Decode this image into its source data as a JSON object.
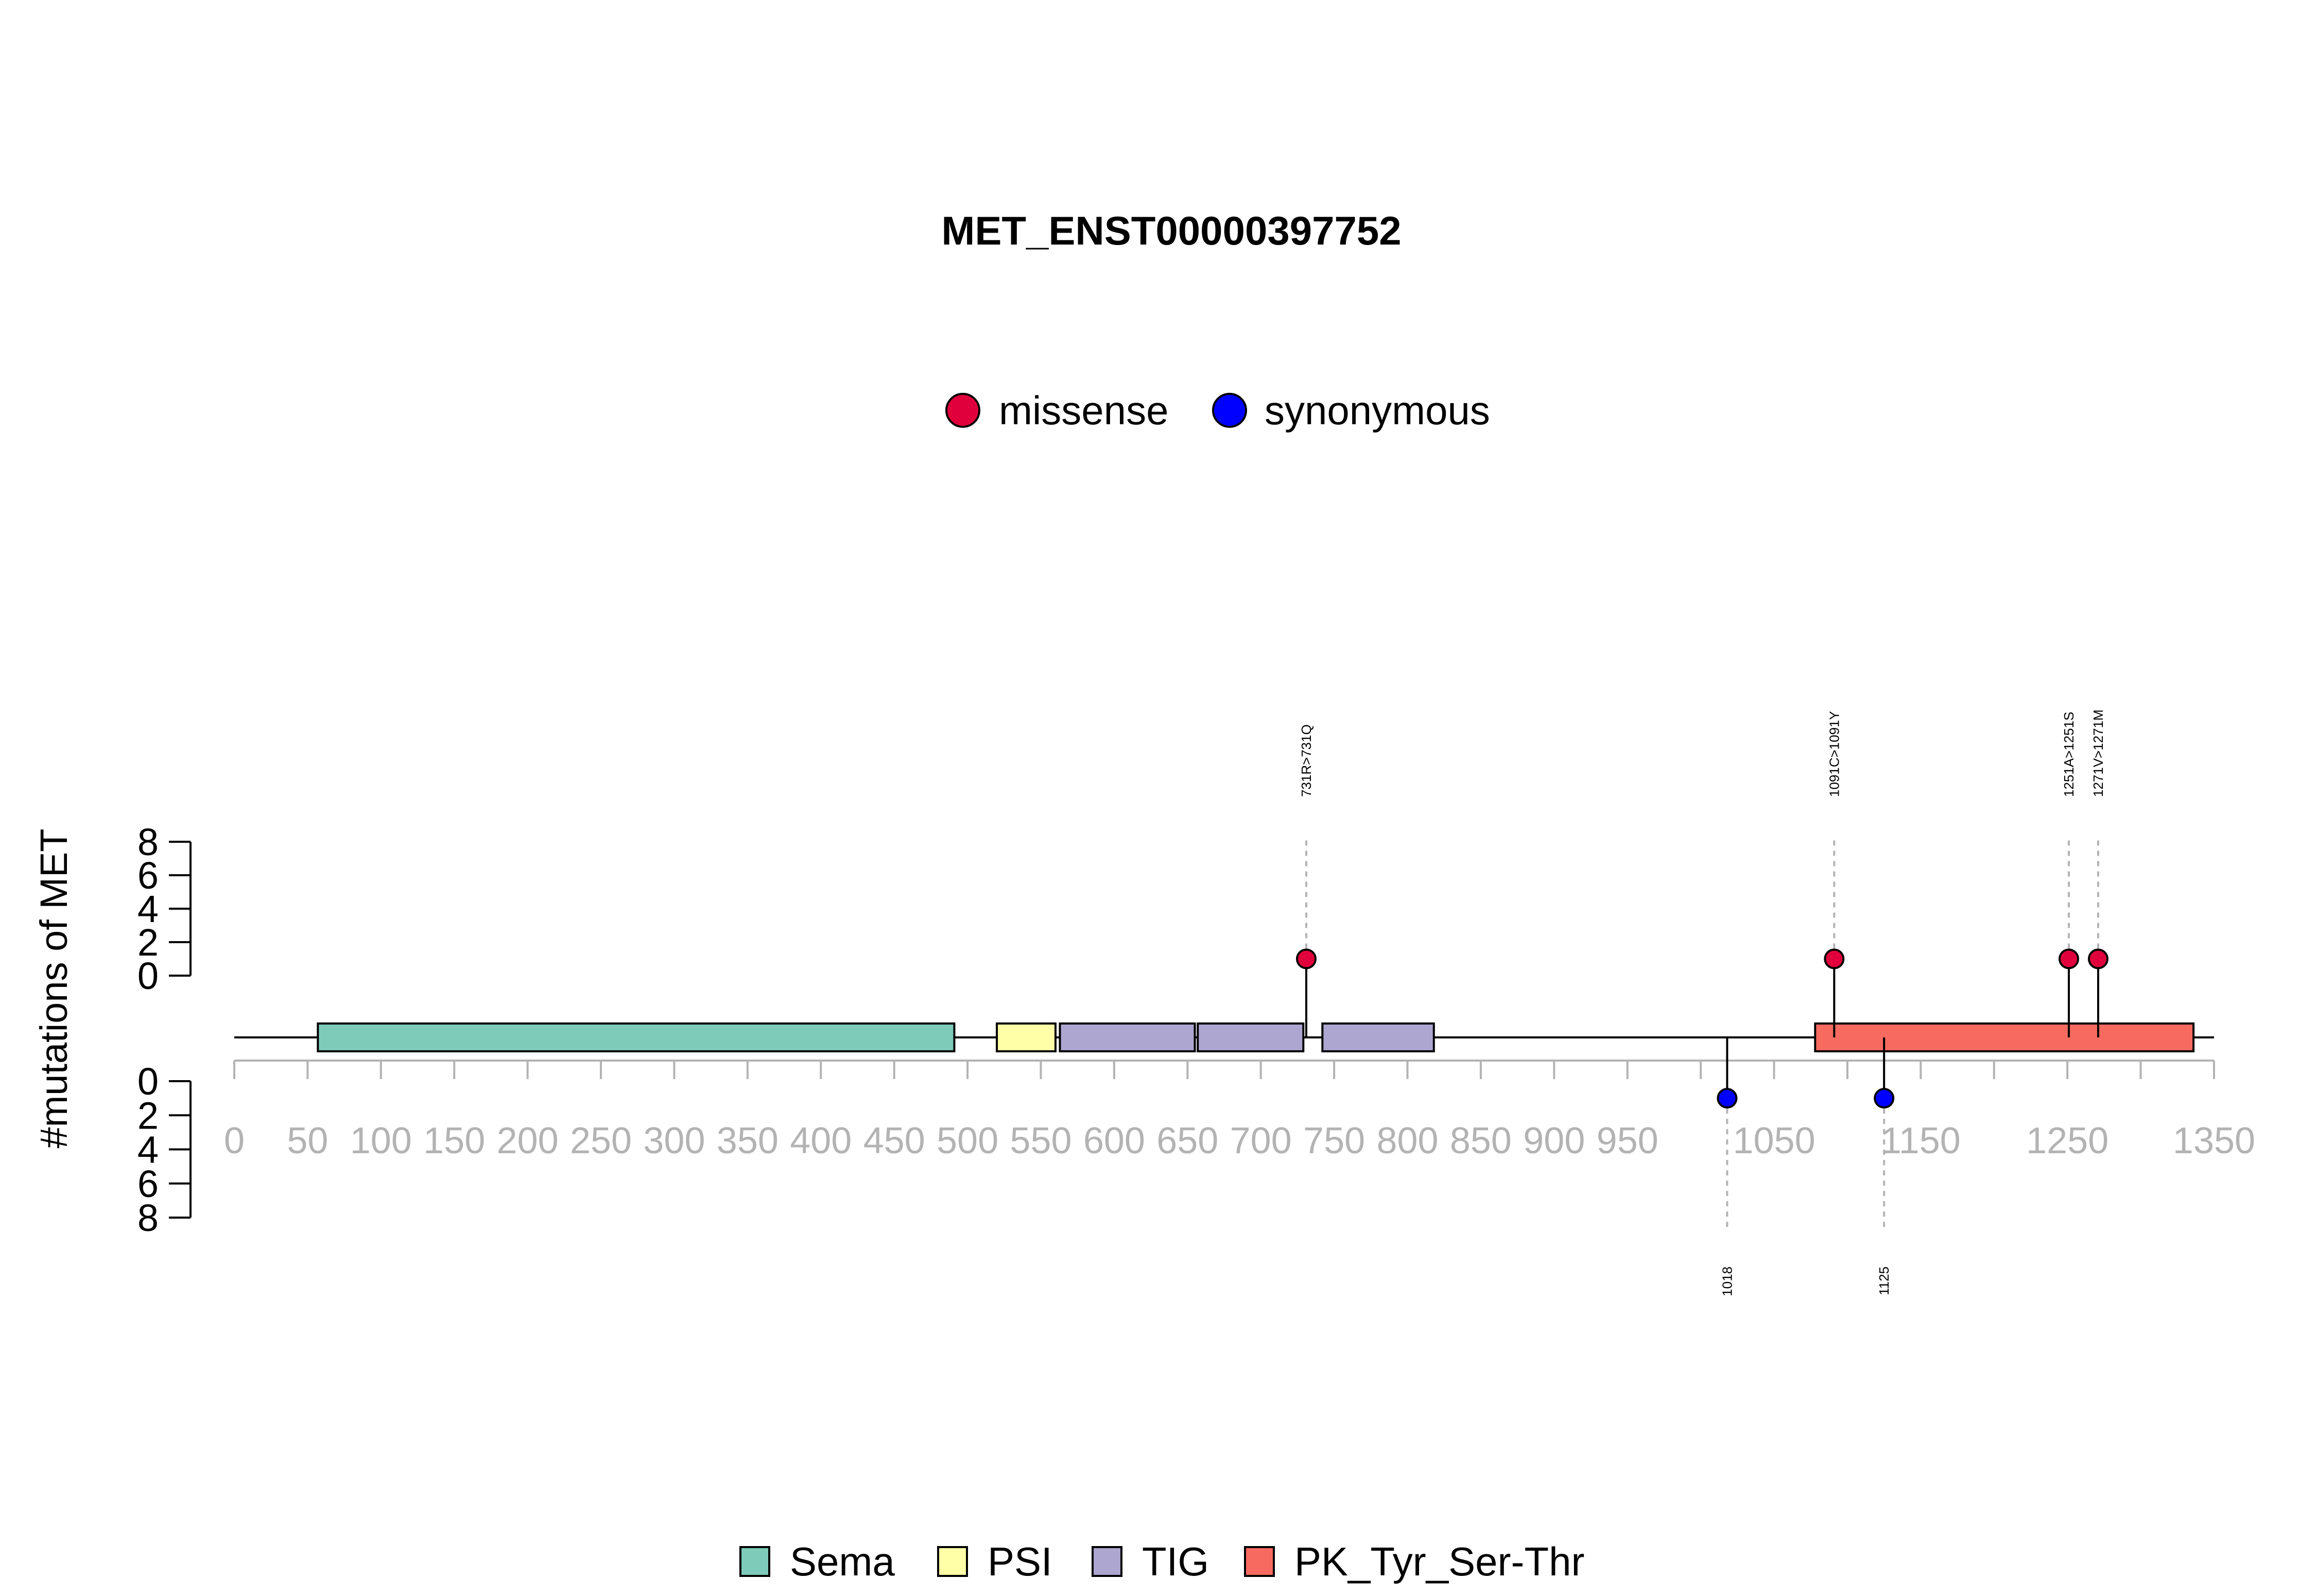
{
  "chart_data": {
    "type": "lollipop",
    "title": "MET_ENST00000397752",
    "ylabel": "#mutations of MET",
    "protein_length": 1390,
    "x_ticks": [
      0,
      50,
      100,
      150,
      200,
      250,
      300,
      350,
      400,
      450,
      500,
      550,
      600,
      650,
      700,
      750,
      800,
      850,
      900,
      950,
      1000,
      1050,
      1100,
      1150,
      1200,
      1250,
      1300,
      1350
    ],
    "x_tick_labels": [
      "0",
      "50",
      "100",
      "150",
      "200",
      "250",
      "300",
      "350",
      "400",
      "450",
      "500",
      "550",
      "600",
      "650",
      "700",
      "750",
      "800",
      "850",
      "900",
      "950",
      "",
      "1050",
      "",
      "1150",
      "",
      "1250",
      "",
      "1350"
    ],
    "y_upper_ticks": [
      "0",
      "2",
      "4",
      "6",
      "8"
    ],
    "y_lower_ticks": [
      "0",
      "2",
      "4",
      "6",
      "8"
    ],
    "y_range": [
      0,
      8
    ],
    "mutation_legend": [
      {
        "label": "missense",
        "color": "#E0003C"
      },
      {
        "label": "synonymous",
        "color": "#0000FF"
      }
    ],
    "domain_legend": [
      {
        "label": "Sema",
        "color": "#7FCBBA"
      },
      {
        "label": "PSI",
        "color": "#FFFFA8"
      },
      {
        "label": "TIG",
        "color": "#ADA6D1"
      },
      {
        "label": "PK_Tyr_Ser-Thr",
        "color": "#F66A60"
      }
    ],
    "domains": [
      {
        "name": "Sema",
        "start": 57,
        "end": 491
      },
      {
        "name": "PSI",
        "start": 520,
        "end": 560
      },
      {
        "name": "TIG",
        "start": 563,
        "end": 655
      },
      {
        "name": "TIG",
        "start": 657,
        "end": 729
      },
      {
        "name": "TIG",
        "start": 742,
        "end": 818
      },
      {
        "name": "PK_Tyr_Ser-Thr",
        "start": 1078,
        "end": 1336
      }
    ],
    "mutations": [
      {
        "position": 731,
        "count": 1,
        "type": "missense",
        "label": "731R>731Q",
        "side": "up"
      },
      {
        "position": 1091,
        "count": 1,
        "type": "missense",
        "label": "1091C>1091Y",
        "side": "up"
      },
      {
        "position": 1251,
        "count": 1,
        "type": "missense",
        "label": "1251A>1251S",
        "side": "up"
      },
      {
        "position": 1271,
        "count": 1,
        "type": "missense",
        "label": "1271V>1271M",
        "side": "up"
      },
      {
        "position": 1018,
        "count": 1,
        "type": "synonymous",
        "label": "1018",
        "side": "down"
      },
      {
        "position": 1125,
        "count": 1,
        "type": "synonymous",
        "label": "1125",
        "side": "down"
      }
    ]
  }
}
